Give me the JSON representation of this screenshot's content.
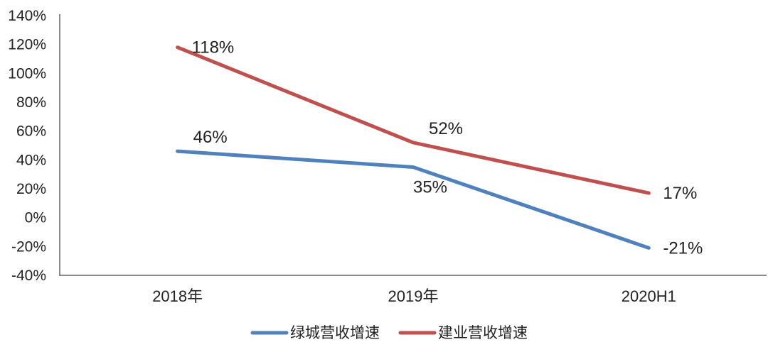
{
  "chart_data": {
    "type": "line",
    "title": "",
    "categories": [
      "2018年",
      "2019年",
      "2020H1"
    ],
    "series": [
      {
        "name": "绿城营收增速",
        "values": [
          46,
          35,
          -21
        ],
        "data_labels": [
          "46%",
          "35%",
          "-21%"
        ],
        "label_positions": [
          "above",
          "below",
          "right"
        ],
        "color": "#4F81BD"
      },
      {
        "name": "建业营收增速",
        "values": [
          118,
          52,
          17
        ],
        "data_labels": [
          "118%",
          "52%",
          "17%"
        ],
        "label_positions": [
          "right",
          "above",
          "right"
        ],
        "color": "#C0504D"
      }
    ],
    "ylim": [
      -40,
      140
    ],
    "ytick_step": 20,
    "ytick_labels": [
      "140%",
      "120%",
      "100%",
      "80%",
      "60%",
      "40%",
      "20%",
      "0%",
      "-20%",
      "-40%"
    ],
    "grid": false,
    "legend_position": "bottom",
    "colors": {
      "axis": "#8C8C8C",
      "text": "#222222",
      "background": "#FFFFFF"
    }
  }
}
